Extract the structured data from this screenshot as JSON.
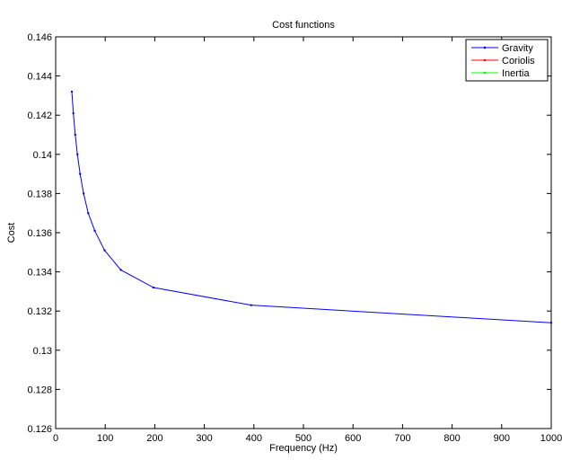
{
  "chart_data": {
    "type": "line",
    "title": "Cost functions",
    "xlabel": "Frequency (Hz)",
    "ylabel": "Cost",
    "xlim": [
      0,
      1000
    ],
    "ylim": [
      0.126,
      0.146
    ],
    "xticks": [
      0,
      100,
      200,
      300,
      400,
      500,
      600,
      700,
      800,
      900,
      1000
    ],
    "xtick_labels": [
      "0",
      "100",
      "200",
      "300",
      "400",
      "500",
      "600",
      "700",
      "800",
      "900",
      "1000"
    ],
    "yticks": [
      0.126,
      0.128,
      0.13,
      0.132,
      0.134,
      0.136,
      0.138,
      0.14,
      0.142,
      0.144,
      0.146
    ],
    "ytick_labels": [
      "0.126",
      "0.128",
      "0.13",
      "0.132",
      "0.134",
      "0.136",
      "0.138",
      "0.14",
      "0.142",
      "0.144",
      "0.146"
    ],
    "grid": false,
    "legend_position": "top-right",
    "series": [
      {
        "name": "Gravity",
        "color": "#0000ff",
        "marker": "dot",
        "x": [
          32.6,
          35.7,
          39.5,
          43.9,
          49.3,
          56.4,
          65.7,
          78.9,
          98.7,
          131.5,
          197.3,
          394.6,
          1000
        ],
        "y": [
          0.1432,
          0.1421,
          0.141,
          0.14,
          0.139,
          0.138,
          0.137,
          0.1361,
          0.1351,
          0.1341,
          0.1332,
          0.1323,
          0.1314
        ]
      },
      {
        "name": "Coriolis",
        "color": "#ff0000",
        "marker": "dot",
        "x": [],
        "y": []
      },
      {
        "name": "Inertia",
        "color": "#00ff00",
        "marker": "dot",
        "x": [],
        "y": []
      }
    ]
  }
}
